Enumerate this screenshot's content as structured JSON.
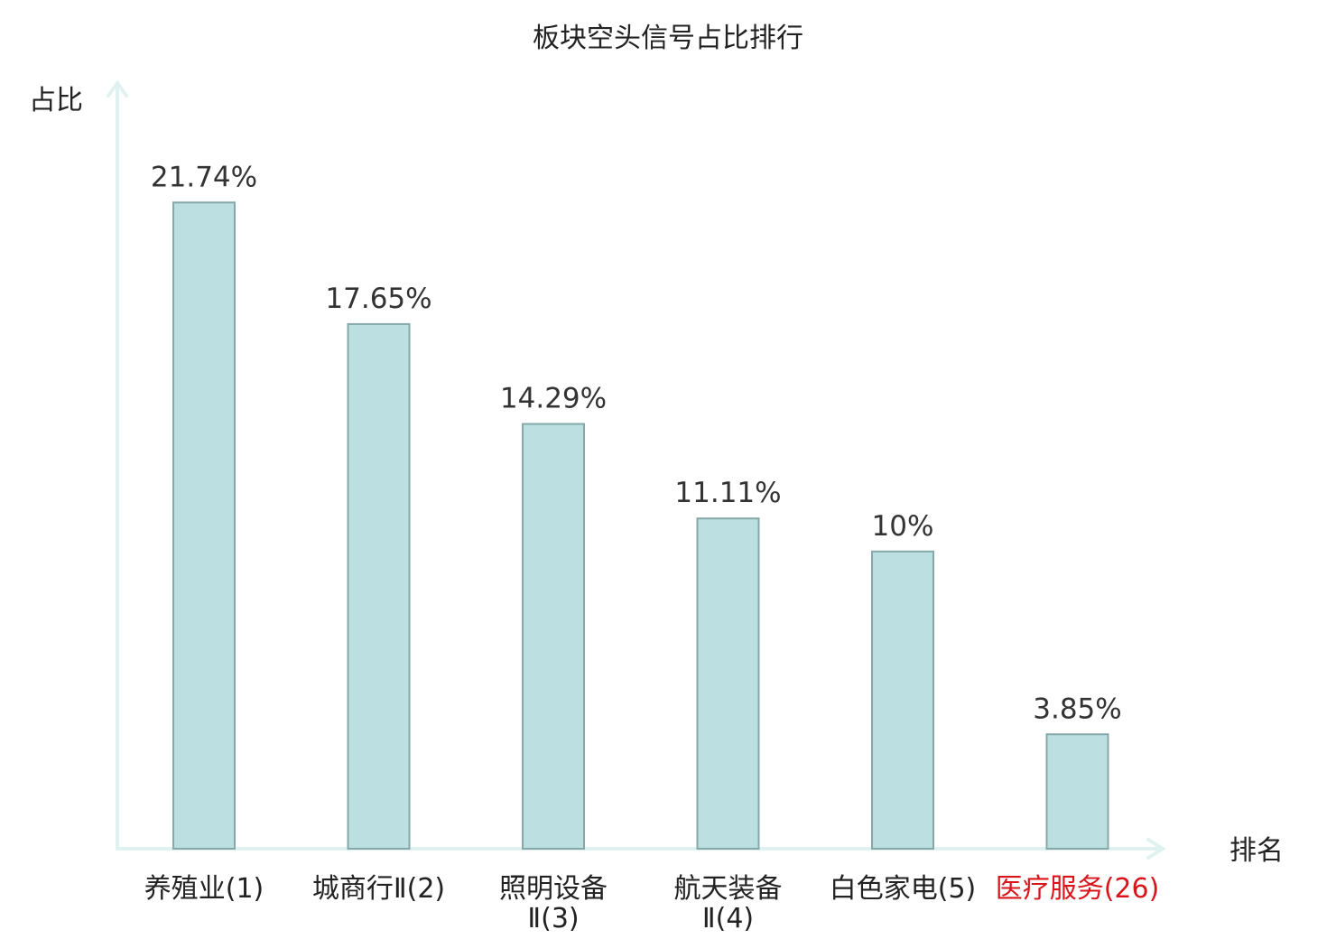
{
  "chart_data": {
    "type": "bar",
    "title": "板块空头信号占比排行",
    "ylabel": "占比",
    "xlabel": "排名",
    "ylim": [
      0,
      24.3
    ],
    "grid": false,
    "legend": "none",
    "categories": [
      [
        "养殖业(1)"
      ],
      [
        "城商行Ⅱ(2)"
      ],
      [
        "照明设备",
        "Ⅱ(3)"
      ],
      [
        "航天装备",
        "Ⅱ(4)"
      ],
      [
        "白色家电(5)"
      ],
      [
        "医疗服务(26)"
      ]
    ],
    "highlight_index": 5,
    "values": [
      21.74,
      17.65,
      14.29,
      11.11,
      10,
      3.85
    ],
    "value_labels": [
      "21.74%",
      "17.65%",
      "14.29%",
      "11.11%",
      "10%",
      "3.85%"
    ],
    "colors": {
      "bar_fill": "#bce0e2",
      "bar_stroke": "#86a8a8",
      "axis": "#e0f2ef",
      "text": "#222222",
      "highlight": "#d9151b"
    }
  }
}
